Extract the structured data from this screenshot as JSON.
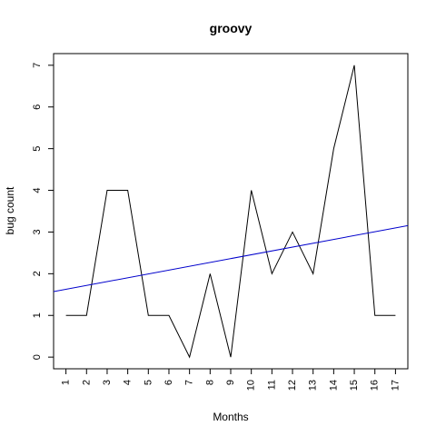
{
  "chart_data": {
    "type": "line",
    "title": "groovy",
    "xlabel": "Months",
    "ylabel": "bug count",
    "x": [
      1,
      2,
      3,
      4,
      5,
      6,
      7,
      8,
      9,
      10,
      11,
      12,
      13,
      14,
      15,
      16,
      17
    ],
    "x_tick_labels": [
      "1",
      "2",
      "3",
      "4",
      "5",
      "6",
      "7",
      "8",
      "9",
      "10",
      "11",
      "12",
      "13",
      "14",
      "15",
      "16",
      "17"
    ],
    "y_ticks": [
      0,
      1,
      2,
      3,
      4,
      5,
      6,
      7
    ],
    "y_tick_labels": [
      "0",
      "1",
      "2",
      "3",
      "4",
      "5",
      "6",
      "7"
    ],
    "series": [
      {
        "values": [
          1,
          1,
          4,
          4,
          1,
          1,
          0,
          2,
          0,
          4,
          2,
          3,
          2,
          5,
          7,
          1,
          1
        ],
        "color": "#000000"
      }
    ],
    "trend_line": {
      "intercept": 1.535,
      "slope": 0.092,
      "color": "#0000cc"
    },
    "xlim": [
      0.4,
      17.6
    ],
    "ylim": [
      -0.28,
      7.28
    ],
    "grid": false,
    "legend": "none"
  }
}
